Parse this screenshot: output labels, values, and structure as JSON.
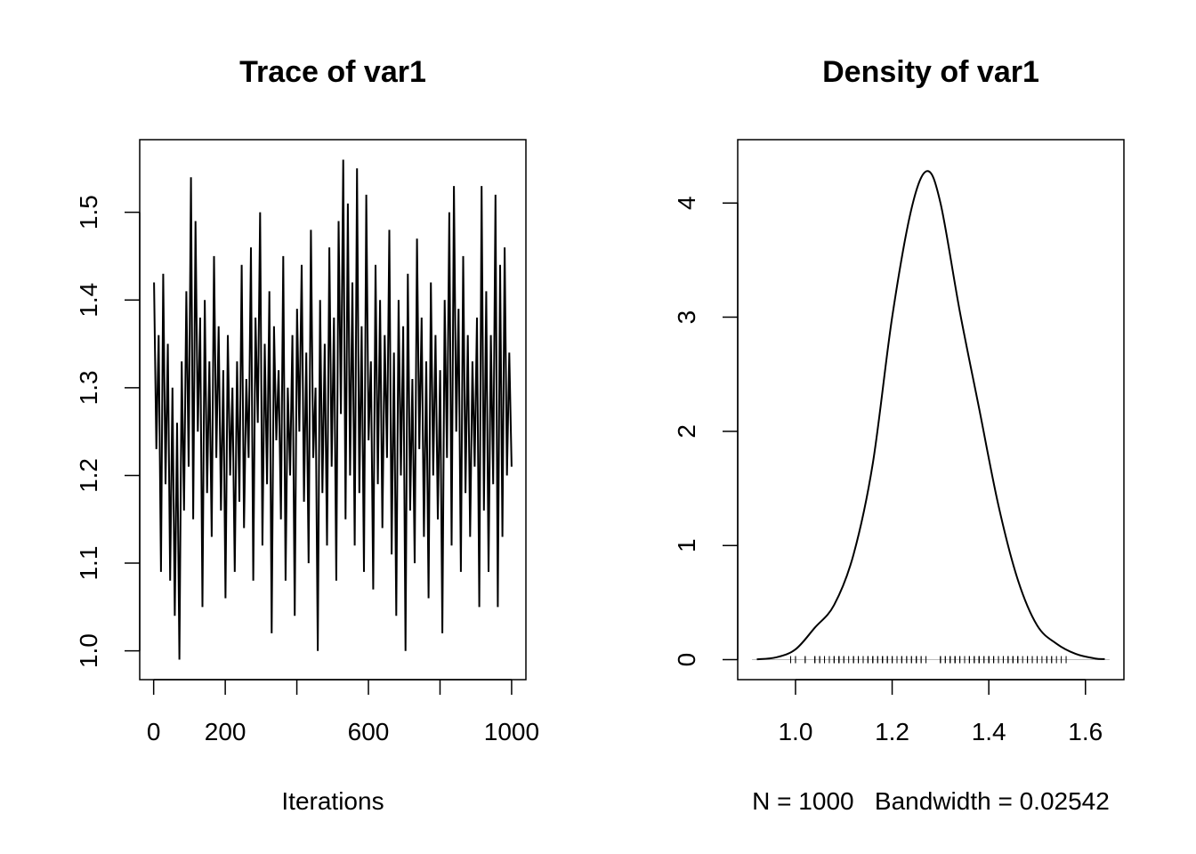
{
  "chart_data": [
    {
      "type": "line",
      "title": "Trace of var1",
      "xlabel": "Iterations",
      "ylabel": "",
      "xlim": [
        1,
        1000
      ],
      "ylim": [
        0.99,
        1.56
      ],
      "x_ticks": [
        0,
        200,
        400,
        600,
        800,
        1000
      ],
      "x_tick_labels": [
        "0",
        "200",
        "",
        "600",
        "",
        "1000"
      ],
      "y_ticks": [
        1.0,
        1.1,
        1.2,
        1.3,
        1.4,
        1.5
      ],
      "y_tick_labels": [
        "1.0",
        "1.1",
        "1.2",
        "1.3",
        "1.4",
        "1.5"
      ],
      "grid": false,
      "color": "#000000",
      "values": [
        1.42,
        1.23,
        1.36,
        1.09,
        1.43,
        1.19,
        1.35,
        1.08,
        1.3,
        1.04,
        1.26,
        0.99,
        1.33,
        1.16,
        1.41,
        1.21,
        1.54,
        1.15,
        1.49,
        1.25,
        1.38,
        1.05,
        1.4,
        1.18,
        1.33,
        1.13,
        1.45,
        1.22,
        1.37,
        1.16,
        1.32,
        1.06,
        1.36,
        1.2,
        1.3,
        1.09,
        1.33,
        1.17,
        1.44,
        1.14,
        1.31,
        1.22,
        1.46,
        1.08,
        1.38,
        1.26,
        1.5,
        1.12,
        1.35,
        1.19,
        1.41,
        1.02,
        1.37,
        1.24,
        1.32,
        1.15,
        1.45,
        1.08,
        1.3,
        1.2,
        1.36,
        1.04,
        1.39,
        1.25,
        1.44,
        1.17,
        1.34,
        1.1,
        1.48,
        1.22,
        1.3,
        1.0,
        1.4,
        1.18,
        1.35,
        1.12,
        1.46,
        1.21,
        1.38,
        1.08,
        1.49,
        1.27,
        1.56,
        1.15,
        1.51,
        1.2,
        1.42,
        1.12,
        1.55,
        1.18,
        1.37,
        1.09,
        1.52,
        1.24,
        1.33,
        1.07,
        1.44,
        1.19,
        1.4,
        1.14,
        1.36,
        1.22,
        1.48,
        1.11,
        1.34,
        1.04,
        1.4,
        1.2,
        1.37,
        1.0,
        1.43,
        1.16,
        1.31,
        1.1,
        1.47,
        1.23,
        1.38,
        1.13,
        1.33,
        1.06,
        1.42,
        1.2,
        1.36,
        1.15,
        1.32,
        1.02,
        1.4,
        1.22,
        1.5,
        1.12,
        1.53,
        1.25,
        1.39,
        1.09,
        1.45,
        1.18,
        1.36,
        1.13,
        1.33,
        1.21,
        1.38,
        1.05,
        1.53,
        1.16,
        1.41,
        1.09,
        1.36,
        1.19,
        1.52,
        1.05,
        1.44,
        1.13,
        1.46,
        1.2,
        1.34,
        1.21
      ]
    },
    {
      "type": "line",
      "title": "Density of var1",
      "xlabel": "N = 1000   Bandwidth = 0.02542",
      "ylabel": "",
      "xlim": [
        0.91,
        1.65
      ],
      "ylim": [
        0,
        4.38
      ],
      "x_ticks": [
        1.0,
        1.2,
        1.4,
        1.6
      ],
      "x_tick_labels": [
        "1.0",
        "1.2",
        "1.4",
        "1.6"
      ],
      "y_ticks": [
        0,
        1,
        2,
        3,
        4
      ],
      "y_tick_labels": [
        "0",
        "1",
        "2",
        "3",
        "4"
      ],
      "grid": false,
      "rug": true,
      "color": "#000000",
      "x": [
        0.92,
        0.96,
        1.0,
        1.04,
        1.08,
        1.12,
        1.16,
        1.2,
        1.24,
        1.272,
        1.3,
        1.34,
        1.38,
        1.42,
        1.46,
        1.5,
        1.54,
        1.58,
        1.62,
        1.64
      ],
      "y": [
        0.003,
        0.02,
        0.09,
        0.28,
        0.48,
        0.92,
        1.72,
        3.0,
        3.95,
        4.28,
        4.0,
        3.05,
        2.2,
        1.35,
        0.7,
        0.3,
        0.14,
        0.05,
        0.01,
        0.005
      ]
    }
  ]
}
